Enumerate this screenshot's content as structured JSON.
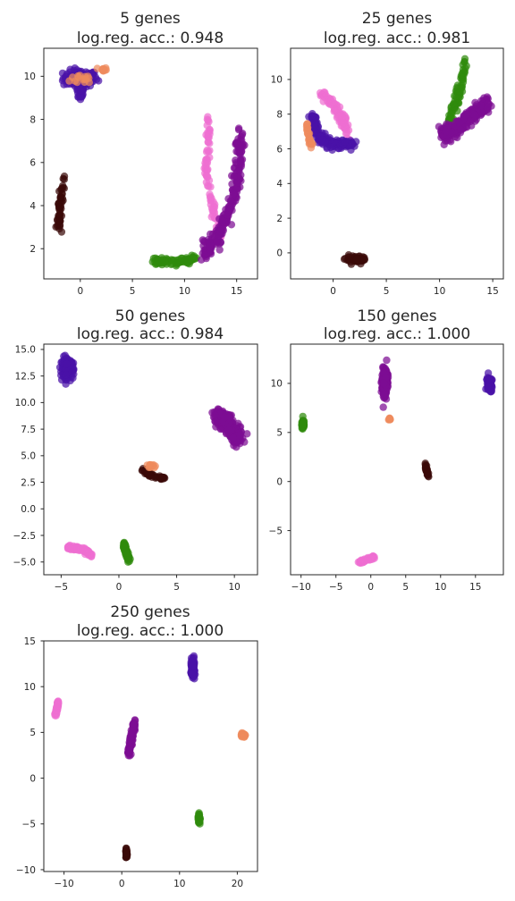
{
  "colors": {
    "indigo": "#4a12a8",
    "purple": "#7d0c93",
    "pink": "#ef6fd1",
    "orange": "#ee8a5d",
    "green": "#2f8a0c",
    "dark": "#3a0a08"
  },
  "chart_data": [
    {
      "type": "scatter",
      "title": "5 genes",
      "subtitle": "log.reg. acc.: 0.948",
      "xlim": [
        -3.5,
        17
      ],
      "ylim": [
        0.6,
        11.3
      ],
      "xticks": [
        0,
        5,
        10,
        15
      ],
      "yticks": [
        2,
        4,
        6,
        8,
        10
      ],
      "grid": false,
      "clusters": [
        {
          "color": "indigo",
          "kind": "blob",
          "cx": 0,
          "cy": 9.9,
          "sx": 1.5,
          "sy": 0.35,
          "n": 120
        },
        {
          "color": "indigo",
          "kind": "blob",
          "cx": 0,
          "cy": 9.3,
          "sx": 0.4,
          "sy": 0.4,
          "n": 30
        },
        {
          "color": "orange",
          "kind": "blob",
          "cx": 0.5,
          "cy": 9.9,
          "sx": 1.3,
          "sy": 0.25,
          "n": 15
        },
        {
          "color": "orange",
          "kind": "blob",
          "cx": 2.2,
          "cy": 10.3,
          "sx": 0.3,
          "sy": 0.1,
          "n": 12
        },
        {
          "color": "dark",
          "kind": "line",
          "pts": [
            [
              -2.1,
              3.0
            ],
            [
              -1.9,
              4.2
            ],
            [
              -1.6,
              5.4
            ]
          ],
          "w": 0.25,
          "n": 50
        },
        {
          "color": "green",
          "kind": "line",
          "pts": [
            [
              7,
              1.4
            ],
            [
              9.5,
              1.4
            ],
            [
              11.2,
              1.6
            ]
          ],
          "w": 0.15,
          "n": 80
        },
        {
          "color": "pink",
          "kind": "line",
          "pts": [
            [
              12.2,
              8.0
            ],
            [
              12.3,
              6.8
            ],
            [
              12.0,
              5.8
            ],
            [
              12.4,
              4.7
            ],
            [
              13.0,
              3.3
            ],
            [
              13.5,
              2.6
            ]
          ],
          "w": 0.25,
          "n": 80
        },
        {
          "color": "purple",
          "kind": "line",
          "pts": [
            [
              15.4,
              7.4
            ],
            [
              15.2,
              6.0
            ],
            [
              14.8,
              4.5
            ],
            [
              13.8,
              3.2
            ],
            [
              12.8,
              2.2
            ],
            [
              11.8,
              1.8
            ]
          ],
          "w": 0.45,
          "n": 210
        }
      ]
    },
    {
      "type": "scatter",
      "title": "25 genes",
      "subtitle": "log.reg. acc.: 0.981",
      "xlim": [
        -4,
        16
      ],
      "ylim": [
        -1.5,
        11.8
      ],
      "xticks": [
        0,
        5,
        10,
        15
      ],
      "yticks": [
        0,
        2,
        4,
        6,
        8,
        10
      ],
      "grid": false,
      "clusters": [
        {
          "color": "pink",
          "kind": "line",
          "pts": [
            [
              -1.2,
              9.2
            ],
            [
              0,
              8.6
            ],
            [
              0.6,
              8.0
            ],
            [
              1.0,
              7.5
            ],
            [
              1.5,
              6.6
            ]
          ],
          "w": 0.3,
          "n": 90
        },
        {
          "color": "indigo",
          "kind": "line",
          "pts": [
            [
              -2.0,
              8.0
            ],
            [
              -1.5,
              6.8
            ],
            [
              0,
              6.2
            ],
            [
              1.8,
              6.3
            ]
          ],
          "w": 0.35,
          "n": 170
        },
        {
          "color": "orange",
          "kind": "line",
          "pts": [
            [
              -2.4,
              7.4
            ],
            [
              -2.3,
              6.6
            ],
            [
              -2.0,
              6.1
            ]
          ],
          "w": 0.15,
          "n": 28
        },
        {
          "color": "green",
          "kind": "line",
          "pts": [
            [
              10.8,
              7.5
            ],
            [
              11.6,
              8.8
            ],
            [
              12.1,
              9.8
            ],
            [
              12.4,
              11.0
            ]
          ],
          "w": 0.3,
          "n": 70
        },
        {
          "color": "purple",
          "kind": "line",
          "pts": [
            [
              10.2,
              6.9
            ],
            [
              11.5,
              7.1
            ],
            [
              13.0,
              7.9
            ],
            [
              14.5,
              8.6
            ]
          ],
          "w": 0.5,
          "n": 240
        },
        {
          "color": "dark",
          "kind": "blob",
          "cx": 2.2,
          "cy": -0.4,
          "sx": 0.9,
          "sy": 0.18,
          "n": 60
        }
      ]
    },
    {
      "type": "scatter",
      "title": "50 genes",
      "subtitle": "log.reg. acc.: 0.984",
      "xlim": [
        -6.5,
        12
      ],
      "ylim": [
        -6.2,
        15.5
      ],
      "xticks": [
        -5,
        0,
        5,
        10
      ],
      "yticks": [
        -5.0,
        -2.5,
        0.0,
        2.5,
        5.0,
        7.5,
        10.0,
        12.5,
        15.0
      ],
      "grid": false,
      "clusters": [
        {
          "color": "indigo",
          "kind": "blob",
          "cx": -4.5,
          "cy": 13.2,
          "sx": 0.5,
          "sy": 0.8,
          "n": 130
        },
        {
          "color": "purple",
          "kind": "line",
          "pts": [
            [
              8.6,
              9.0
            ],
            [
              9.5,
              7.8
            ],
            [
              10.4,
              6.5
            ]
          ],
          "w": 0.7,
          "n": 300
        },
        {
          "color": "dark",
          "kind": "line",
          "pts": [
            [
              2.0,
              3.7
            ],
            [
              3.0,
              3.0
            ],
            [
              3.8,
              2.9
            ]
          ],
          "w": 0.18,
          "n": 50
        },
        {
          "color": "orange",
          "kind": "blob",
          "cx": 2.8,
          "cy": 4.0,
          "sx": 0.35,
          "sy": 0.15,
          "n": 12
        },
        {
          "color": "pink",
          "kind": "line",
          "pts": [
            [
              -4.4,
              -3.6
            ],
            [
              -3.0,
              -3.8
            ],
            [
              -2.4,
              -4.4
            ]
          ],
          "w": 0.2,
          "n": 90
        },
        {
          "color": "green",
          "kind": "line",
          "pts": [
            [
              0.4,
              -3.2
            ],
            [
              0.6,
              -3.9
            ],
            [
              0.9,
              -4.9
            ]
          ],
          "w": 0.2,
          "n": 55
        }
      ]
    },
    {
      "type": "scatter",
      "title": "150 genes",
      "subtitle": "log.reg. acc.: 1.000",
      "xlim": [
        -11.5,
        19
      ],
      "ylim": [
        -9.5,
        14
      ],
      "xticks": [
        -10,
        -5,
        0,
        5,
        10,
        15
      ],
      "yticks": [
        -5,
        0,
        5,
        10
      ],
      "grid": false,
      "clusters": [
        {
          "color": "purple",
          "kind": "blob",
          "cx": 2.0,
          "cy": 10.0,
          "sx": 0.35,
          "sy": 1.3,
          "n": 200
        },
        {
          "color": "indigo",
          "kind": "blob",
          "cx": 17.0,
          "cy": 10.0,
          "sx": 0.3,
          "sy": 0.6,
          "n": 100
        },
        {
          "color": "green",
          "kind": "blob",
          "cx": -9.7,
          "cy": 5.8,
          "sx": 0.15,
          "sy": 0.4,
          "n": 50
        },
        {
          "color": "orange",
          "kind": "blob",
          "cx": 2.7,
          "cy": 6.4,
          "sx": 0.15,
          "sy": 0.12,
          "n": 10
        },
        {
          "color": "dark",
          "kind": "line",
          "pts": [
            [
              7.8,
              1.8
            ],
            [
              8.2,
              0.5
            ]
          ],
          "w": 0.15,
          "n": 30
        },
        {
          "color": "pink",
          "kind": "line",
          "pts": [
            [
              -1.8,
              -8.3
            ],
            [
              -0.5,
              -7.9
            ],
            [
              0.5,
              -7.7
            ]
          ],
          "w": 0.2,
          "n": 50
        }
      ]
    },
    {
      "type": "scatter",
      "title": "250 genes",
      "subtitle": "log.reg. acc.: 1.000",
      "xlim": [
        -13.5,
        23.5
      ],
      "ylim": [
        -10.2,
        15
      ],
      "xticks": [
        -10,
        0,
        10,
        20
      ],
      "yticks": [
        -10,
        -5,
        0,
        5,
        10,
        15
      ],
      "grid": false,
      "clusters": [
        {
          "color": "pink",
          "kind": "line",
          "pts": [
            [
              -11.5,
              6.8
            ],
            [
              -11.2,
              7.6
            ],
            [
              -11.0,
              8.4
            ]
          ],
          "w": 0.15,
          "n": 50
        },
        {
          "color": "purple",
          "kind": "line",
          "pts": [
            [
              1.2,
              2.6
            ],
            [
              1.6,
              4.4
            ],
            [
              2.3,
              6.2
            ]
          ],
          "w": 0.3,
          "n": 100
        },
        {
          "color": "indigo",
          "kind": "blob",
          "cx": 12.3,
          "cy": 12.0,
          "sx": 0.25,
          "sy": 0.9,
          "n": 110
        },
        {
          "color": "orange",
          "kind": "blob",
          "cx": 21.0,
          "cy": 4.7,
          "sx": 0.4,
          "sy": 0.15,
          "n": 30
        },
        {
          "color": "green",
          "kind": "blob",
          "cx": 13.4,
          "cy": -4.5,
          "sx": 0.15,
          "sy": 0.5,
          "n": 40
        },
        {
          "color": "dark",
          "kind": "blob",
          "cx": 0.8,
          "cy": -8.2,
          "sx": 0.12,
          "sy": 0.45,
          "n": 40
        }
      ]
    }
  ]
}
